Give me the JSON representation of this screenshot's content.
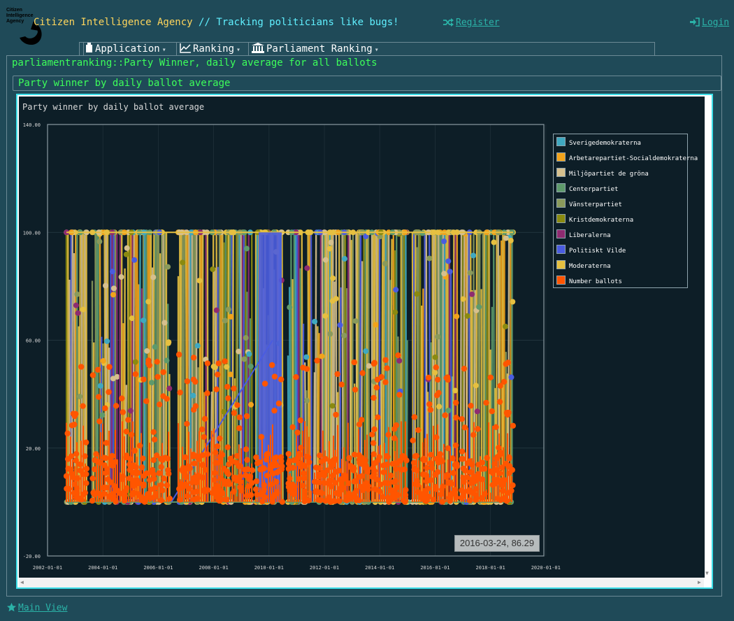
{
  "header": {
    "logo_text": [
      "Citizen",
      "Intelligence",
      "Agency"
    ],
    "site_name": "Citizen Intelligence Agency",
    "separator": "//",
    "tagline": "Tracking politicians like bugs!",
    "register_label": "Register",
    "login_label": "Login"
  },
  "menu": {
    "items": [
      {
        "label": "Application",
        "icon": "document-icon"
      },
      {
        "label": "Ranking",
        "icon": "line-chart-icon"
      },
      {
        "label": "Parliament Ranking",
        "icon": "parliament-icon"
      }
    ]
  },
  "breadcrumb": "parliamentranking::Party Winner, daily average for all ballots",
  "section_title": "Party winner by daily ballot average",
  "tooltip": "2016-03-24, 86.29",
  "footer": {
    "main_view_label": "Main View"
  },
  "chart_data": {
    "type": "line",
    "title": "Party winner by daily ballot average",
    "ylim": [
      -20,
      140
    ],
    "y_ticks": [
      "140.00",
      "100.00",
      "60.00",
      "20.00",
      "-20.00"
    ],
    "x_ticks": [
      "2002-01-01",
      "2004-01-01",
      "2006-01-01",
      "2008-01-01",
      "2010-01-01",
      "2012-01-01",
      "2014-01-01",
      "2016-01-01",
      "2018-01-01",
      "2020-01-01"
    ],
    "legend_placement": "right",
    "series": [
      {
        "name": "Sverigedemokraterna",
        "color": "#3fa8c0"
      },
      {
        "name": "Arbetarepartiet-Socialdemokraterna",
        "color": "#f2a31b"
      },
      {
        "name": "Miljöpartiet de gröna",
        "color": "#d6c08e"
      },
      {
        "name": "Centerpartiet",
        "color": "#5e9a6b"
      },
      {
        "name": "Vänsterpartiet",
        "color": "#8a9a5b"
      },
      {
        "name": "Kristdemokraterna",
        "color": "#8a8a10"
      },
      {
        "name": "Liberalerna",
        "color": "#8e2b70"
      },
      {
        "name": "Politiskt Vilde",
        "color": "#4a5ce0"
      },
      {
        "name": "Moderaterna",
        "color": "#e6c040"
      },
      {
        "name": "Number ballots",
        "color": "#ff5500"
      }
    ]
  }
}
